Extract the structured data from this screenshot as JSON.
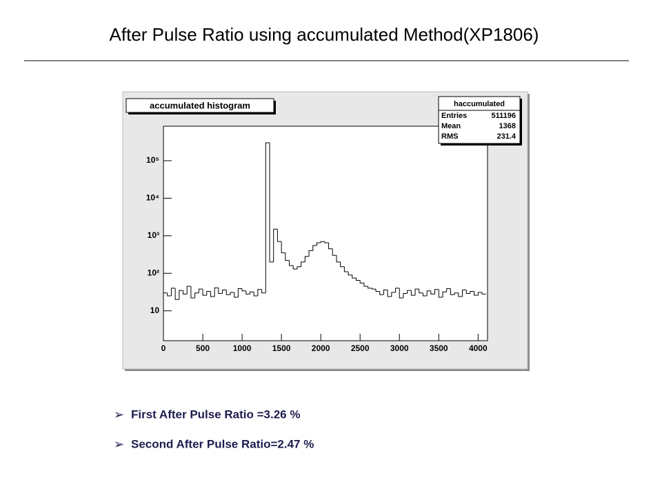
{
  "slide_title": "After Pulse Ratio using accumulated Method(XP1806)",
  "bullets": [
    "First After Pulse Ratio =3.26 %",
    "Second After Pulse Ratio=2.47 %"
  ],
  "chart_data": {
    "type": "histogram",
    "title": "accumulated histogram",
    "stats": {
      "name": "haccumulated",
      "rows": [
        {
          "label": "Entries",
          "value": 511196
        },
        {
          "label": "Mean",
          "value": 1368
        },
        {
          "label": "RMS",
          "value": 231.4
        }
      ]
    },
    "bins": [
      0,
      50,
      100,
      150,
      200,
      250,
      300,
      350,
      400,
      450,
      500,
      550,
      600,
      650,
      700,
      750,
      800,
      850,
      900,
      950,
      1000,
      1050,
      1100,
      1150,
      1200,
      1250,
      1300,
      1350,
      1400,
      1450,
      1500,
      1550,
      1600,
      1650,
      1700,
      1750,
      1800,
      1850,
      1900,
      1950,
      2000,
      2050,
      2100,
      2150,
      2200,
      2250,
      2300,
      2350,
      2400,
      2450,
      2500,
      2550,
      2600,
      2650,
      2700,
      2750,
      2800,
      2850,
      2900,
      2950,
      3000,
      3050,
      3100,
      3150,
      3200,
      3250,
      3300,
      3350,
      3400,
      3450,
      3500,
      3550,
      3600,
      3650,
      3700,
      3750,
      3800,
      3850,
      3900,
      3950,
      4000,
      4050,
      4100
    ],
    "values": [
      30,
      25,
      40,
      20,
      35,
      28,
      45,
      22,
      30,
      38,
      26,
      33,
      24,
      41,
      29,
      36,
      27,
      31,
      23,
      39,
      34,
      28,
      32,
      25,
      37,
      30,
      300000,
      200,
      1500,
      700,
      350,
      220,
      160,
      130,
      150,
      200,
      280,
      400,
      550,
      650,
      700,
      650,
      450,
      300,
      200,
      150,
      110,
      90,
      75,
      65,
      55,
      45,
      40,
      38,
      33,
      27,
      36,
      24,
      31,
      40,
      22,
      29,
      35,
      26,
      38,
      30,
      25,
      34,
      28,
      37,
      23,
      32,
      39,
      27,
      30,
      24,
      36,
      29,
      33,
      26,
      31,
      28
    ],
    "color": "#000000",
    "xlim": [
      0,
      4120
    ],
    "xticks": [
      0,
      500,
      1000,
      1500,
      2000,
      2500,
      3000,
      3500,
      4000
    ],
    "ylim": [
      1.6,
      830000
    ],
    "log_y": true,
    "yticks": [
      {
        "value": 10,
        "label": "10"
      },
      {
        "value": 100,
        "label": "10²"
      },
      {
        "value": 1000,
        "label": "10³"
      },
      {
        "value": 10000,
        "label": "10⁴"
      },
      {
        "value": 100000,
        "label": "10⁵"
      }
    ]
  }
}
